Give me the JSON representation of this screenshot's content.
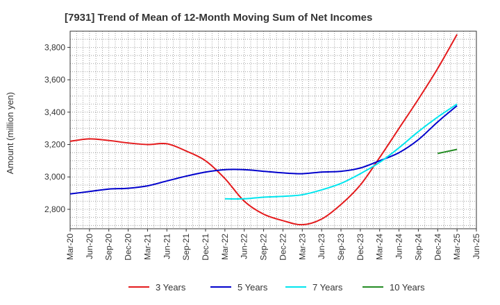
{
  "chart_data": {
    "type": "line",
    "title": "[7931]  Trend of Mean of 12-Month Moving Sum of Net Incomes",
    "xlabel": "",
    "ylabel": "Amount (million yen)",
    "ylim": [
      2680,
      3900
    ],
    "yticks": [
      2800,
      3000,
      3200,
      3400,
      3600,
      3800
    ],
    "ytick_labels": [
      "2,800",
      "3,000",
      "3,200",
      "3,400",
      "3,600",
      "3,800"
    ],
    "xticks": [
      "Mar-20",
      "Jun-20",
      "Sep-20",
      "Dec-20",
      "Mar-21",
      "Jun-21",
      "Sep-21",
      "Dec-21",
      "Mar-22",
      "Jun-22",
      "Sep-22",
      "Dec-22",
      "Mar-23",
      "Jun-23",
      "Sep-23",
      "Dec-23",
      "Mar-24",
      "Jun-24",
      "Sep-24",
      "Dec-24",
      "Mar-25",
      "Jun-25"
    ],
    "grid": true,
    "legend_position": "bottom",
    "series": [
      {
        "name": "3 Years",
        "color": "#e41a1c",
        "x": [
          "Mar-20",
          "Jun-20",
          "Sep-20",
          "Dec-20",
          "Mar-21",
          "Jun-21",
          "Sep-21",
          "Dec-21",
          "Mar-22",
          "Jun-22",
          "Sep-22",
          "Dec-22",
          "Mar-23",
          "Jun-23",
          "Sep-23",
          "Dec-23",
          "Mar-24",
          "Jun-24",
          "Sep-24",
          "Dec-24",
          "Mar-25"
        ],
        "values": [
          3220,
          3235,
          3225,
          3210,
          3200,
          3205,
          3160,
          3100,
          2990,
          2850,
          2770,
          2730,
          2705,
          2740,
          2830,
          2950,
          3120,
          3300,
          3480,
          3670,
          3880
        ]
      },
      {
        "name": "5 Years",
        "color": "#0000cc",
        "x": [
          "Mar-20",
          "Jun-20",
          "Sep-20",
          "Dec-20",
          "Mar-21",
          "Jun-21",
          "Sep-21",
          "Dec-21",
          "Mar-22",
          "Jun-22",
          "Sep-22",
          "Dec-22",
          "Mar-23",
          "Jun-23",
          "Sep-23",
          "Dec-23",
          "Mar-24",
          "Jun-24",
          "Sep-24",
          "Dec-24",
          "Mar-25"
        ],
        "values": [
          2895,
          2910,
          2925,
          2930,
          2945,
          2975,
          3005,
          3030,
          3045,
          3045,
          3035,
          3025,
          3020,
          3030,
          3035,
          3055,
          3100,
          3150,
          3230,
          3340,
          3440
        ]
      },
      {
        "name": "7 Years",
        "color": "#00e5ee",
        "x": [
          "Mar-22",
          "Jun-22",
          "Sep-22",
          "Dec-22",
          "Mar-23",
          "Jun-23",
          "Sep-23",
          "Dec-23",
          "Mar-24",
          "Jun-24",
          "Sep-24",
          "Dec-24",
          "Mar-25"
        ],
        "values": [
          2865,
          2865,
          2875,
          2880,
          2890,
          2920,
          2960,
          3020,
          3090,
          3180,
          3280,
          3370,
          3450
        ]
      },
      {
        "name": "10 Years",
        "color": "#228b22",
        "x": [
          "Dec-24",
          "Mar-25"
        ],
        "values": [
          3145,
          3170
        ]
      }
    ]
  }
}
